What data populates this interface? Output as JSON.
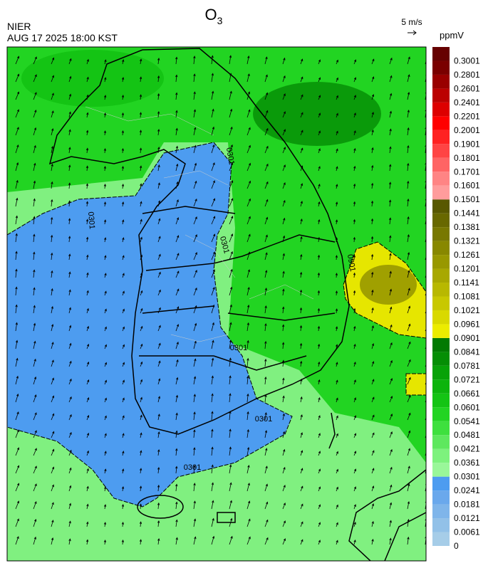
{
  "header": {
    "title": "O",
    "title_sub": "3",
    "agency": "NIER",
    "datetime": "AUG 17 2025 18:00 KST",
    "wind_scale": "5 m/s"
  },
  "colorbar": {
    "unit": "ppmV",
    "levels": [
      0,
      0.0061,
      0.0121,
      0.0181,
      0.0241,
      0.0301,
      0.0361,
      0.0421,
      0.0481,
      0.0541,
      0.0601,
      0.0661,
      0.0721,
      0.0781,
      0.0841,
      0.0901,
      0.0961,
      0.1021,
      0.1081,
      0.1141,
      0.1201,
      0.1261,
      0.1321,
      0.1381,
      0.1441,
      0.1501,
      0.1601,
      0.1701,
      0.1801,
      0.1901,
      0.2001,
      0.2201,
      0.2401,
      0.2601,
      0.2801,
      0.3001
    ],
    "colors": [
      "#a6cde8",
      "#92c1e8",
      "#7fb5ea",
      "#6aa8ec",
      "#4d9cf0",
      "#99f799",
      "#7df27d",
      "#5ee85e",
      "#3ee03e",
      "#22d422",
      "#14c414",
      "#0cb40c",
      "#08a208",
      "#058e05",
      "#027a02",
      "#ecec00",
      "#d9d900",
      "#c8c800",
      "#b8b800",
      "#a8a800",
      "#989800",
      "#888800",
      "#787800",
      "#686800",
      "#585800",
      "#ff9c9c",
      "#ff8484",
      "#ff6464",
      "#ff4444",
      "#ff2222",
      "#ff0000",
      "#dd0000",
      "#bb0000",
      "#990000",
      "#7a0000",
      "#660000"
    ]
  },
  "contour_labels": [
    "0301",
    "0301",
    "0301",
    "0301",
    "0301",
    "0301",
    "0901"
  ]
}
